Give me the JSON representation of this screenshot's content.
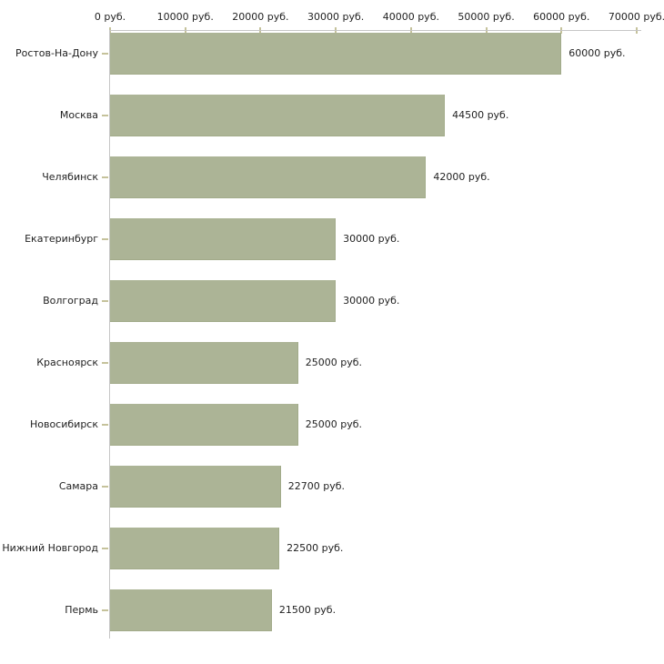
{
  "chart_data": {
    "type": "bar",
    "orientation": "horizontal",
    "title": "",
    "xlabel": "",
    "ylabel": "",
    "unit": "руб.",
    "categories": [
      "Ростов-На-Дону",
      "Москва",
      "Челябинск",
      "Екатеринбург",
      "Волгоград",
      "Красноярск",
      "Новосибирск",
      "Самара",
      "Нижний Новгород",
      "Пермь"
    ],
    "values": [
      60000,
      44500,
      42000,
      30000,
      30000,
      25000,
      25000,
      22700,
      22500,
      21500
    ],
    "bar_labels": [
      "60000 руб.",
      "44500 руб.",
      "42000 руб.",
      "30000 руб.",
      "30000 руб.",
      "25000 руб.",
      "25000 руб.",
      "22700 руб.",
      "22500 руб.",
      "21500 руб."
    ],
    "x_ticks": [
      0,
      10000,
      20000,
      30000,
      40000,
      50000,
      60000,
      70000
    ],
    "x_tick_labels": [
      "0 руб.",
      "10000 руб.",
      "20000 руб.",
      "30000 руб.",
      "40000 руб.",
      "50000 руб.",
      "60000 руб.",
      "70000 руб."
    ],
    "xlim": [
      0,
      70000
    ],
    "grid": false,
    "legend": null,
    "colors": {
      "bar_fill": "#acb496",
      "bar_edge": "#a2ab8a",
      "axis_line": "#c6c6c6",
      "tick_mark": "#c5c29b",
      "text": "#222222",
      "background": "#ffffff"
    }
  }
}
